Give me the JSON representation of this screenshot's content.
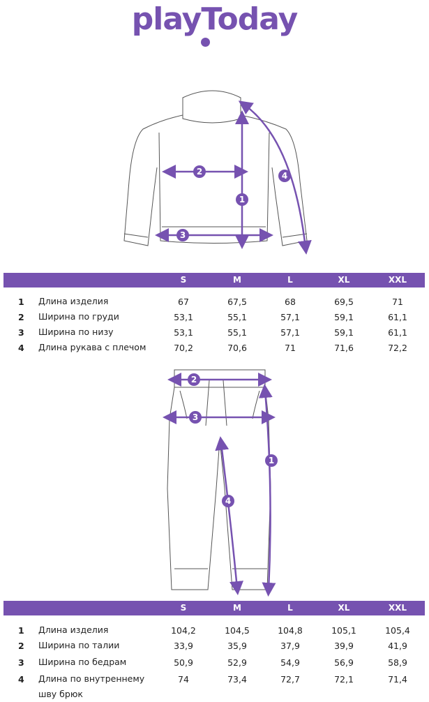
{
  "brand": {
    "logo_text": "playToday",
    "accent": "#7652b0"
  },
  "sizes": [
    "S",
    "M",
    "L",
    "XL",
    "XXL"
  ],
  "sweater": {
    "markers": [
      "1",
      "2",
      "3",
      "4"
    ],
    "rows": [
      {
        "n": "1",
        "label": "Длина изделия",
        "values": [
          "67",
          "67,5",
          "68",
          "69,5",
          "71"
        ]
      },
      {
        "n": "2",
        "label": "Ширина по груди",
        "values": [
          "53,1",
          "55,1",
          "57,1",
          "59,1",
          "61,1"
        ]
      },
      {
        "n": "3",
        "label": "Ширина по низу",
        "values": [
          "53,1",
          "55,1",
          "57,1",
          "59,1",
          "61,1"
        ]
      },
      {
        "n": "4",
        "label": "Длина рукава с плечом",
        "values": [
          "70,2",
          "70,6",
          "71",
          "71,6",
          "72,2"
        ]
      }
    ]
  },
  "pants": {
    "markers": [
      "1",
      "2",
      "3",
      "4"
    ],
    "rows": [
      {
        "n": "1",
        "label": "Длина изделия",
        "values": [
          "104,2",
          "104,5",
          "104,8",
          "105,1",
          "105,4"
        ]
      },
      {
        "n": "2",
        "label": "Ширина по талии",
        "values": [
          "33,9",
          "35,9",
          "37,9",
          "39,9",
          "41,9"
        ]
      },
      {
        "n": "3",
        "label": "Ширина по бедрам",
        "values": [
          "50,9",
          "52,9",
          "54,9",
          "56,9",
          "58,9"
        ]
      },
      {
        "n": "4",
        "label": "Длина по внутреннему шву брюк",
        "values": [
          "74",
          "73,4",
          "72,7",
          "72,1",
          "71,4"
        ]
      }
    ]
  }
}
